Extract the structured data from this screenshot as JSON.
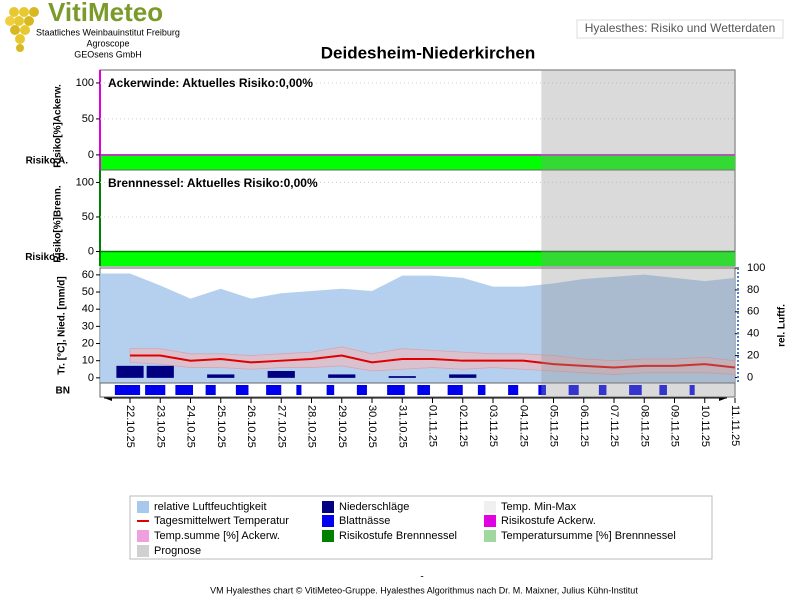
{
  "header": {
    "logo": "VitiMeteo",
    "institutes": [
      "Staatliches Weinbauinstitut Freiburg",
      "Agroscope",
      "GEOsens GmbH"
    ],
    "badge": "Hyalesthes: Risiko und Wetterdaten",
    "title": "Deidesheim-Niederkirchen"
  },
  "chart_data": [
    {
      "type": "risk",
      "title": "Ackerwinde: Aktuelles Risiko:0,00%",
      "ylabel": "Risiko[%]Ackerw.",
      "ylim": [
        -21,
        118
      ],
      "yticks": [
        0,
        50,
        100
      ],
      "color": "#e000e0",
      "values": [
        0,
        0,
        0,
        0,
        0,
        0,
        0,
        0,
        0,
        0,
        0,
        0,
        0,
        0,
        0,
        0,
        0,
        0,
        0,
        0,
        0
      ],
      "band_label": "Risiko A.",
      "band_color": "#00ff00"
    },
    {
      "type": "risk",
      "title": "Brennnessel: Aktuelles Risiko:0,00%",
      "ylabel": "Risiko[%]Brenn.",
      "ylim": [
        -21,
        118
      ],
      "yticks": [
        0,
        50,
        100
      ],
      "color": "#008000",
      "values": [
        0,
        0,
        0,
        0,
        0,
        0,
        0,
        0,
        0,
        0,
        0,
        0,
        0,
        0,
        0,
        0,
        0,
        0,
        0,
        0,
        0
      ],
      "band_label": "Risiko B.",
      "band_color": "#00ff00"
    },
    {
      "type": "weather",
      "ylabel": "Tr. [°C], Nied. [mm/d]",
      "y2label": "rel. Luftf.",
      "ylim": [
        -3,
        64
      ],
      "yticks": [
        0,
        10,
        20,
        30,
        40,
        50,
        60
      ],
      "y2lim": [
        -5,
        100
      ],
      "y2ticks": [
        0,
        20,
        40,
        60,
        80,
        100
      ],
      "x": [
        "22.10.25",
        "23.10.25",
        "24.10.25",
        "25.10.25",
        "26.10.25",
        "27.10.25",
        "28.10.25",
        "29.10.25",
        "30.10.25",
        "31.10.25",
        "01.11.25",
        "02.11.25",
        "03.11.25",
        "04.11.25",
        "05.11.25",
        "06.11.25",
        "07.11.25",
        "08.11.25",
        "09.11.25",
        "10.11.25",
        "11.11.25"
      ],
      "prognose_from": "05.11.25",
      "row_label": "BN",
      "series": [
        {
          "type": "area",
          "axis": "y2",
          "color": "#a8c8ec",
          "values": [
            95,
            84,
            72,
            81,
            72,
            77,
            79,
            81,
            79,
            93,
            93,
            91,
            83,
            83,
            86,
            90,
            92,
            94,
            91,
            88,
            91
          ]
        },
        {
          "type": "band",
          "color": "#f4b8b8",
          "low": [
            9,
            8,
            6,
            6,
            5,
            6,
            6,
            7,
            4,
            5,
            6,
            5,
            6,
            5,
            4,
            3,
            2,
            3,
            3,
            3,
            2
          ],
          "high": [
            17,
            17,
            14,
            14,
            13,
            14,
            15,
            18,
            14,
            17,
            16,
            15,
            14,
            14,
            13,
            11,
            10,
            11,
            11,
            12,
            10
          ]
        },
        {
          "type": "bar",
          "color": "#000080",
          "values": [
            7,
            7,
            0,
            2,
            0,
            4,
            0,
            2,
            0,
            1,
            0,
            2,
            0,
            0,
            0,
            0,
            0,
            0,
            0,
            0,
            0
          ]
        },
        {
          "type": "line",
          "color": "#e00000",
          "values": [
            13,
            13,
            10,
            11,
            9,
            10,
            11,
            13,
            9,
            11,
            11,
            10,
            10,
            10,
            8,
            7,
            6,
            7,
            7,
            8,
            6
          ]
        },
        {
          "type": "strip",
          "color": "#0000ee",
          "values": [
            20,
            16,
            14,
            8,
            10,
            12,
            4,
            6,
            8,
            14,
            10,
            12,
            6,
            8,
            6,
            8,
            6,
            10,
            6,
            4,
            0
          ]
        }
      ]
    }
  ],
  "legend": [
    {
      "name": "relative Luftfeuchtigkeit",
      "color": "#a8c8ec"
    },
    {
      "name": "Niederschläge",
      "color": "#000080"
    },
    {
      "name": "Temp. Min-Max",
      "color": "#f0f0f0"
    },
    {
      "name": "Tagesmittelwert Temperatur",
      "color": "#e00000",
      "swatch": "line"
    },
    {
      "name": "Blattnässe",
      "color": "#0000ee"
    },
    {
      "name": "Risikostufe Ackerw.",
      "color": "#e000e0"
    },
    {
      "name": "Temp.summe [%] Ackerw.",
      "color": "#f0a0e0"
    },
    {
      "name": "Risikostufe Brennnessel",
      "color": "#008000"
    },
    {
      "name": "Temperatursumme [%] Brennnessel",
      "color": "#a0d8a0"
    },
    {
      "name": "Prognose",
      "color": "#d0d0d0"
    }
  ],
  "footer_dash": "-",
  "footer": "VM Hyalesthes chart © VitiMeteo-Gruppe. Hyalesthes Algorithmus nach Dr. M. Maixner, Julius Kühn-Institut"
}
